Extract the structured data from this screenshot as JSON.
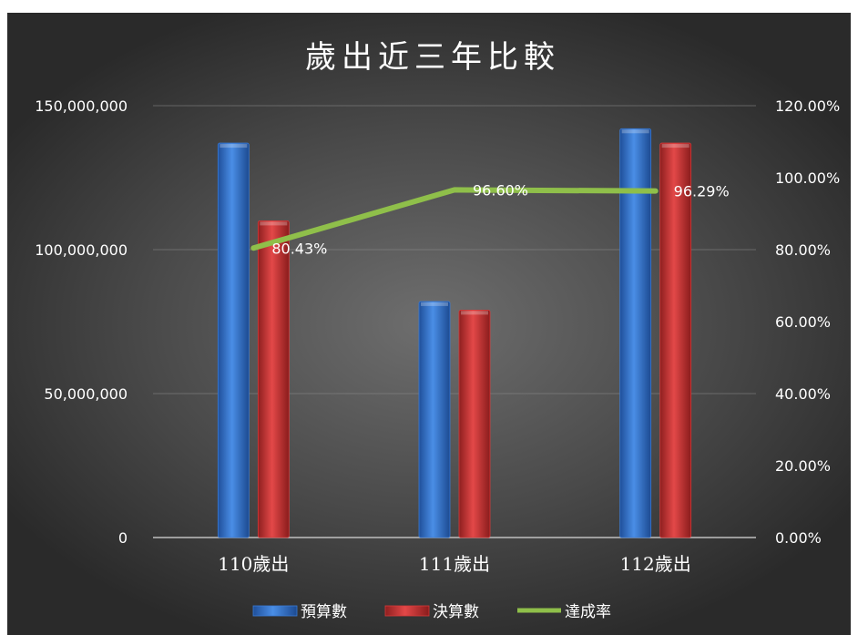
{
  "chart_data": {
    "type": "bar",
    "title": "歲出近三年比較",
    "categories": [
      "110歲出",
      "111歲出",
      "112歲出"
    ],
    "series": [
      {
        "name": "預算數",
        "type": "bar",
        "axis": "left",
        "color": "#3a7bd5",
        "values": [
          137000000,
          82000000,
          142000000
        ]
      },
      {
        "name": "決算數",
        "type": "bar",
        "axis": "left",
        "color": "#d63a3a",
        "values": [
          110000000,
          79000000,
          137000000
        ]
      },
      {
        "name": "達成率",
        "type": "line",
        "axis": "right",
        "color": "#8fbf4a",
        "values": [
          80.43,
          96.6,
          96.29
        ],
        "labels": [
          "80.43%",
          "96.60%",
          "96.29%"
        ]
      }
    ],
    "y_left": {
      "min": 0,
      "max": 150000000,
      "ticks": [
        "0",
        "50,000,000",
        "100,000,000",
        "150,000,000"
      ],
      "tick_values": [
        0,
        50000000,
        100000000,
        150000000
      ]
    },
    "y_right": {
      "min": 0,
      "max": 120,
      "ticks": [
        "0.00%",
        "20.00%",
        "40.00%",
        "60.00%",
        "80.00%",
        "100.00%",
        "120.00%"
      ],
      "tick_values": [
        0,
        20,
        40,
        60,
        80,
        100,
        120
      ]
    },
    "grid": true,
    "legend_position": "bottom"
  }
}
